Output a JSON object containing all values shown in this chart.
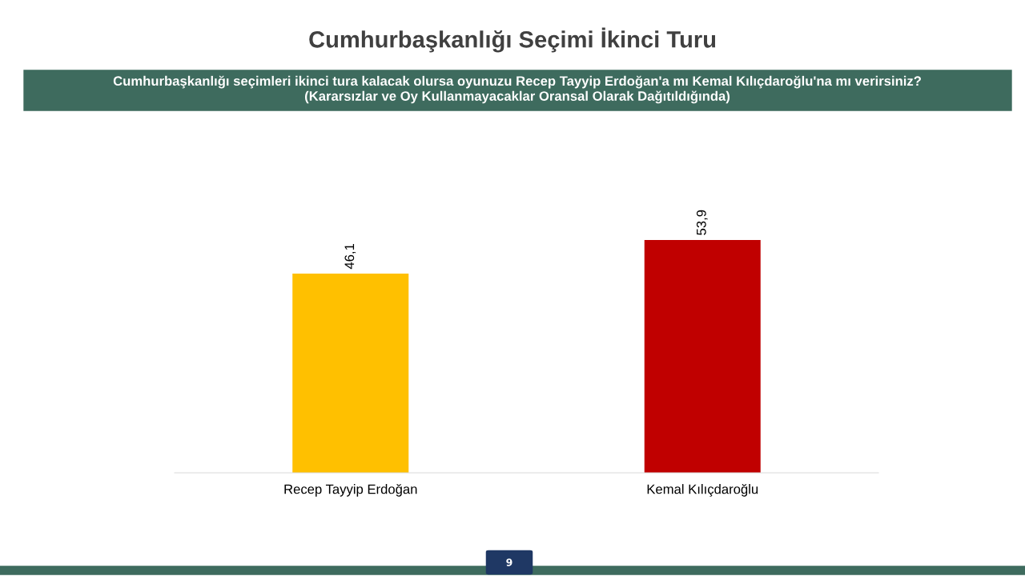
{
  "chart_data": {
    "type": "bar",
    "title": "Cumhurbaşkanlığı Seçimi İkinci Turu",
    "subtitle": "Cumhurbaşkanlığı seçimleri ikinci tura kalacak olursa oyunuzu Recep Tayyip Erdoğan'a mı Kemal Kılıçdaroğlu'na mı verirsiniz?\n(Kararsızlar ve Oy Kullanmayacaklar Oransal Olarak Dağıtıldığında)",
    "categories": [
      "Recep Tayyip Erdoğan",
      "Kemal Kılıçdaroğlu"
    ],
    "values": [
      46.1,
      53.9
    ],
    "value_labels": [
      "46,1",
      "53,9"
    ],
    "colors": [
      "#ffc000",
      "#c00000"
    ],
    "annotations": [
      "9"
    ],
    "grid": false,
    "legend": false
  }
}
